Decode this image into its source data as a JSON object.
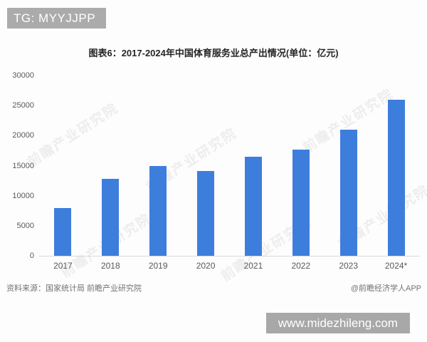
{
  "overlay": {
    "tg_badge": "TG: MYYJJPP",
    "footer_bar": "www.midezhileng.com"
  },
  "chart_data": {
    "type": "bar",
    "title": "图表6：2017-2024年中国体育服务业总产出情况(单位：亿元)",
    "categories": [
      "2017",
      "2018",
      "2019",
      "2020",
      "2021",
      "2022",
      "2023",
      "2024*"
    ],
    "values": [
      8000,
      12800,
      14900,
      14100,
      16500,
      17700,
      21000,
      26000
    ],
    "ylim": [
      0,
      30000
    ],
    "yticks": [
      0,
      5000,
      10000,
      15000,
      20000,
      25000,
      30000
    ],
    "bar_color": "#3D7EDD",
    "grid": false,
    "legend": false,
    "xlabel": "",
    "ylabel": ""
  },
  "footer": {
    "source_note": "资料来源：国家统计局 前瞻产业研究院",
    "credit": "@前瞻经济学人APP"
  },
  "watermark": {
    "text": "前瞻产业研究院"
  },
  "colors": {
    "bar": "#3D7EDD",
    "badge_bg": "#ABABAB",
    "footer_bar_bg": "#A8A8A8",
    "axis_line": "#d9d9d9"
  }
}
